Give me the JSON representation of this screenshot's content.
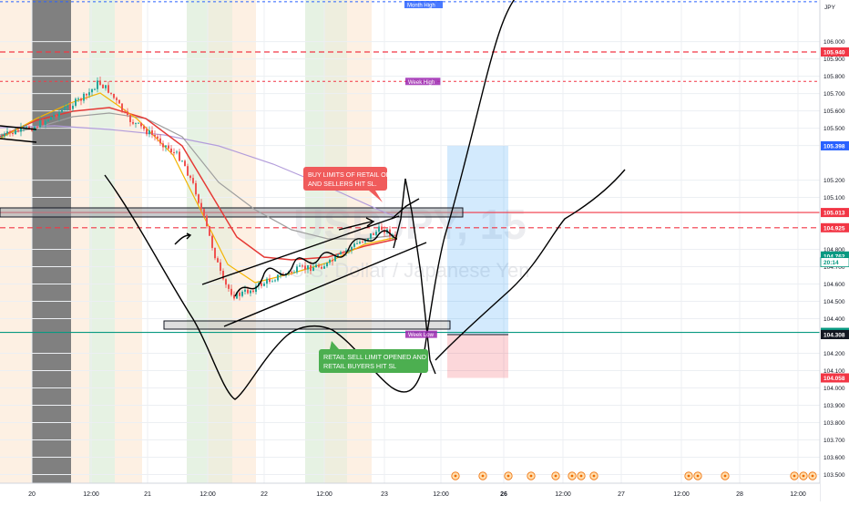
{
  "chart_data": {
    "type": "line",
    "symbol_watermark": "USDJPY, 15",
    "symbol_subtitle": "U.S. Dollar / Japanese Yen",
    "currency_label": "JPY",
    "ylim": [
      103.45,
      106.24
    ],
    "y_ticks": [
      106.0,
      105.9,
      105.8,
      105.7,
      105.6,
      105.5,
      105.4,
      105.2,
      105.1,
      104.8,
      104.7,
      104.6,
      104.5,
      104.4,
      104.2,
      104.1,
      104.0,
      103.9,
      103.8,
      103.7,
      103.6,
      103.5
    ],
    "x_ticks": [
      "20",
      "12:00",
      "21",
      "12:00",
      "22",
      "12:00",
      "23",
      "12:00",
      "26",
      "12:00",
      "27",
      "12:00",
      "28",
      "12:00"
    ],
    "bold_x_ticks": [
      "26"
    ],
    "price_labels": [
      {
        "value": 105.94,
        "label": "105.940",
        "color": "#f23645",
        "style": "dashed"
      },
      {
        "value": 105.398,
        "label": "105.398",
        "color": "#2962ff",
        "style": "box"
      },
      {
        "value": 105.013,
        "label": "105.013",
        "color": "#f23645",
        "style": "solid"
      },
      {
        "value": 104.925,
        "label": "104.925",
        "color": "#f23645",
        "style": "dashed"
      },
      {
        "value": 104.762,
        "label": "104.762",
        "color": "#089981",
        "style": "box"
      },
      {
        "value": 104.726,
        "label": "20:14",
        "color": "#089981",
        "style": "outline"
      },
      {
        "value": 104.321,
        "label": "104.321",
        "color": "#089981",
        "style": "solid"
      },
      {
        "value": 104.308,
        "label": "104.308",
        "color": "#131722",
        "style": "dark"
      },
      {
        "value": 104.058,
        "label": "104.058",
        "color": "#f23645",
        "style": "box"
      }
    ],
    "level_tags": [
      {
        "value": 106.23,
        "label": "Month High",
        "color": "#2962ff"
      },
      {
        "value": 105.77,
        "label": "Week High",
        "color": "#9c27b0"
      },
      {
        "value": 104.31,
        "label": "Week Low",
        "color": "#9c27b0"
      }
    ],
    "annotations": [
      {
        "text": "BUY LIMITS OF RETAIL OPENED AND SELLERS HIT SL.",
        "color": "#f05b5b"
      },
      {
        "text": "RETAIL SELL LIMIT OPENED AND RETAIL BUYERS HIT SL",
        "color": "#4caf50"
      }
    ],
    "grid": true
  }
}
